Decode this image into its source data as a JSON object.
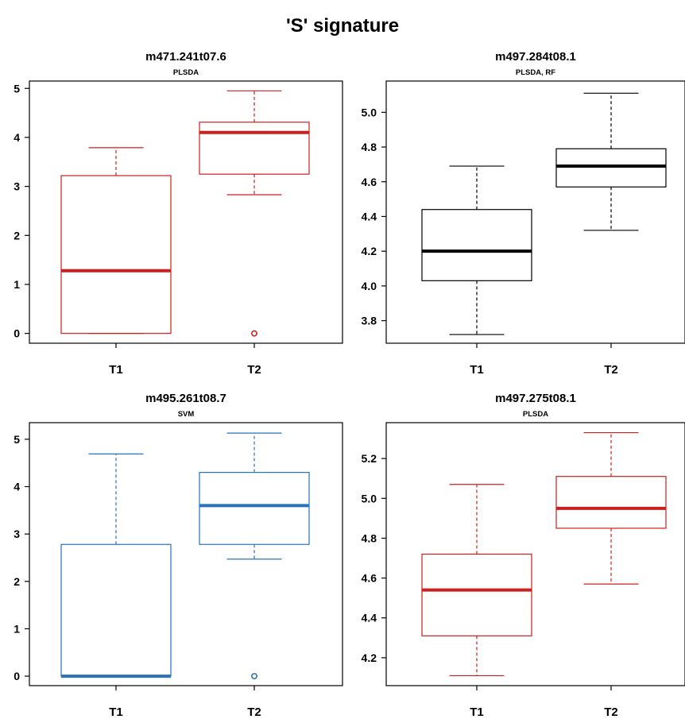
{
  "title": "'S' signature",
  "chart_data": [
    {
      "type": "box",
      "title": "m471.241t07.6",
      "subtitle": "PLSDA",
      "color": "#cc1f1f",
      "categories": [
        "T1",
        "T2"
      ],
      "yticks": [
        0,
        1,
        2,
        3,
        4,
        5
      ],
      "ylim": [
        -0.2,
        5.15
      ],
      "boxes": [
        {
          "category": "T1",
          "whisker_low": 0,
          "q1": 0,
          "median": 1.28,
          "q3": 3.22,
          "whisker_high": 3.79,
          "outliers": []
        },
        {
          "category": "T2",
          "whisker_low": 2.83,
          "q1": 3.25,
          "median": 4.1,
          "q3": 4.31,
          "whisker_high": 4.95,
          "outliers": [
            0
          ]
        }
      ]
    },
    {
      "type": "box",
      "title": "m497.284t08.1",
      "subtitle": "PLSDA, RF",
      "color": "#000000",
      "categories": [
        "T1",
        "T2"
      ],
      "yticks": [
        3.8,
        4.0,
        4.2,
        4.4,
        4.6,
        4.8,
        5.0
      ],
      "ylim": [
        3.67,
        5.18
      ],
      "boxes": [
        {
          "category": "T1",
          "whisker_low": 3.72,
          "q1": 4.03,
          "median": 4.2,
          "q3": 4.44,
          "whisker_high": 4.69,
          "outliers": []
        },
        {
          "category": "T2",
          "whisker_low": 4.32,
          "q1": 4.57,
          "median": 4.69,
          "q3": 4.79,
          "whisker_high": 5.11,
          "outliers": []
        }
      ]
    },
    {
      "type": "box",
      "title": "m495.261t08.7",
      "subtitle": "SVM",
      "color": "#2a72b8",
      "categories": [
        "T1",
        "T2"
      ],
      "yticks": [
        0,
        1,
        2,
        3,
        4,
        5
      ],
      "ylim": [
        -0.2,
        5.35
      ],
      "boxes": [
        {
          "category": "T1",
          "whisker_low": 0,
          "q1": 0,
          "median": 0,
          "q3": 2.78,
          "whisker_high": 4.69,
          "outliers": []
        },
        {
          "category": "T2",
          "whisker_low": 2.47,
          "q1": 2.78,
          "median": 3.6,
          "q3": 4.3,
          "whisker_high": 5.13,
          "outliers": [
            0
          ]
        }
      ]
    },
    {
      "type": "box",
      "title": "m497.275t08.1",
      "subtitle": "PLSDA",
      "color": "#cc1f1f",
      "categories": [
        "T1",
        "T2"
      ],
      "yticks": [
        4.2,
        4.4,
        4.6,
        4.8,
        5.0,
        5.2
      ],
      "ylim": [
        4.06,
        5.38
      ],
      "boxes": [
        {
          "category": "T1",
          "whisker_low": 4.11,
          "q1": 4.31,
          "median": 4.54,
          "q3": 4.72,
          "whisker_high": 5.07,
          "outliers": []
        },
        {
          "category": "T2",
          "whisker_low": 4.57,
          "q1": 4.85,
          "median": 4.95,
          "q3": 5.11,
          "whisker_high": 5.33,
          "outliers": []
        }
      ]
    }
  ]
}
